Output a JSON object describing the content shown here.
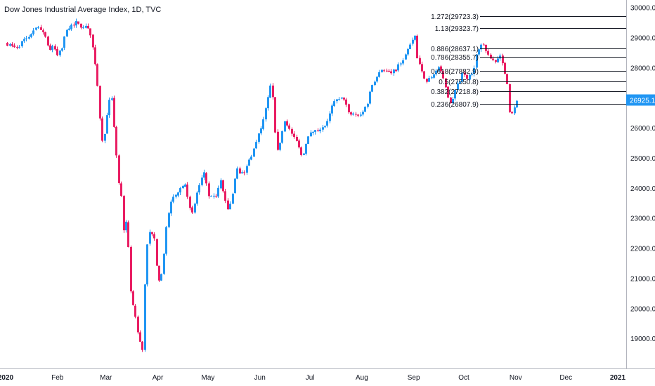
{
  "chart_title": "Dow Jones Industrial Average Index, 1D, TVC",
  "colors": {
    "up": "#2196f3",
    "down": "#e91e63",
    "fib_line": "#131722",
    "price_tag_bg": "#2196f3",
    "price_tag_text": "#ffffff",
    "axis_text": "#131722",
    "axis_line": "#b2b5be"
  },
  "chart_data": {
    "type": "candlestick",
    "title": "Dow Jones Industrial Average Index, 1D, TVC",
    "x_axis": {
      "labels": [
        "2020",
        "Feb",
        "Mar",
        "Apr",
        "May",
        "Jun",
        "Jul",
        "Aug",
        "Sep",
        "Oct",
        "Nov",
        "Dec",
        "2021"
      ]
    },
    "y_axis": {
      "side": "right",
      "range": [
        18000,
        30250
      ],
      "ticks": [
        "19000.0",
        "20000.0",
        "21000.0",
        "22000.0",
        "23000.0",
        "24000.0",
        "25000.0",
        "26000.0",
        "27000.0",
        "28000.0",
        "29000.0",
        "30000.0"
      ]
    },
    "last_price": {
      "value": 26925.1,
      "label": "26925.1"
    },
    "fib_levels": [
      {
        "label": "1.272(29723.3)",
        "price": 29723.3
      },
      {
        "label": "1.13(29323.7)",
        "price": 29323.7
      },
      {
        "label": "0.886(28637.1)",
        "price": 28637.1
      },
      {
        "label": "0.786(28355.7)",
        "price": 28355.7
      },
      {
        "label": "0.618(27882.9)",
        "price": 27882.9
      },
      {
        "label": "0.5(27550.8)",
        "price": 27550.8
      },
      {
        "label": "0.382(27218.8)",
        "price": 27218.8
      },
      {
        "label": "0.236(26807.9)",
        "price": 26807.9
      }
    ],
    "series_path": [
      [
        "2020-01-02",
        28800
      ],
      [
        "2020-01-06",
        28650
      ],
      [
        "2020-01-08",
        28700
      ],
      [
        "2020-01-10",
        28800
      ],
      [
        "2020-01-15",
        29050
      ],
      [
        "2020-01-17",
        29250
      ],
      [
        "2020-01-21",
        29350
      ],
      [
        "2020-01-24",
        29150
      ],
      [
        "2020-01-27",
        28600
      ],
      [
        "2020-01-30",
        28700
      ],
      [
        "2020-01-31",
        28350
      ],
      [
        "2020-02-04",
        28700
      ],
      [
        "2020-02-06",
        29300
      ],
      [
        "2020-02-12",
        29500
      ],
      [
        "2020-02-14",
        29400
      ],
      [
        "2020-02-19",
        29350
      ],
      [
        "2020-02-21",
        29000
      ],
      [
        "2020-02-24",
        27950
      ],
      [
        "2020-02-27",
        25800
      ],
      [
        "2020-02-28",
        25400
      ],
      [
        "2020-03-02",
        26700
      ],
      [
        "2020-03-04",
        27100
      ],
      [
        "2020-03-06",
        25900
      ],
      [
        "2020-03-09",
        23850
      ],
      [
        "2020-03-11",
        23550
      ],
      [
        "2020-03-12",
        21200
      ],
      [
        "2020-03-13",
        23200
      ],
      [
        "2020-03-16",
        20200
      ],
      [
        "2020-03-18",
        19900
      ],
      [
        "2020-03-20",
        19150
      ],
      [
        "2020-03-23",
        18590
      ],
      [
        "2020-03-24",
        20700
      ],
      [
        "2020-03-26",
        22550
      ],
      [
        "2020-03-30",
        22300
      ],
      [
        "2020-04-01",
        20950
      ],
      [
        "2020-04-03",
        21050
      ],
      [
        "2020-04-06",
        22700
      ],
      [
        "2020-04-09",
        23700
      ],
      [
        "2020-04-14",
        23950
      ],
      [
        "2020-04-17",
        24250
      ],
      [
        "2020-04-21",
        23000
      ],
      [
        "2020-04-24",
        23800
      ],
      [
        "2020-04-29",
        24600
      ],
      [
        "2020-05-01",
        23700
      ],
      [
        "2020-05-06",
        23700
      ],
      [
        "2020-05-08",
        24300
      ],
      [
        "2020-05-13",
        23250
      ],
      [
        "2020-05-15",
        23700
      ],
      [
        "2020-05-18",
        24600
      ],
      [
        "2020-05-22",
        24450
      ],
      [
        "2020-05-26",
        24990
      ],
      [
        "2020-05-29",
        25400
      ],
      [
        "2020-06-03",
        26250
      ],
      [
        "2020-06-08",
        27570
      ],
      [
        "2020-06-11",
        25100
      ],
      [
        "2020-06-16",
        26300
      ],
      [
        "2020-06-19",
        25850
      ],
      [
        "2020-06-24",
        25450
      ],
      [
        "2020-06-26",
        25000
      ],
      [
        "2020-06-30",
        25800
      ],
      [
        "2020-07-02",
        25800
      ],
      [
        "2020-07-08",
        26050
      ],
      [
        "2020-07-10",
        26080
      ],
      [
        "2020-07-15",
        26850
      ],
      [
        "2020-07-21",
        27000
      ],
      [
        "2020-07-24",
        26450
      ],
      [
        "2020-07-31",
        26430
      ],
      [
        "2020-08-04",
        26800
      ],
      [
        "2020-08-07",
        27430
      ],
      [
        "2020-08-12",
        27980
      ],
      [
        "2020-08-18",
        27780
      ],
      [
        "2020-08-21",
        27930
      ],
      [
        "2020-08-26",
        28330
      ],
      [
        "2020-09-02",
        29100
      ],
      [
        "2020-09-03",
        28290
      ],
      [
        "2020-09-08",
        27500
      ],
      [
        "2020-09-11",
        27670
      ],
      [
        "2020-09-16",
        28030
      ],
      [
        "2020-09-21",
        27150
      ],
      [
        "2020-09-23",
        26760
      ],
      [
        "2020-09-25",
        27170
      ],
      [
        "2020-09-30",
        27780
      ],
      [
        "2020-10-02",
        27680
      ],
      [
        "2020-10-06",
        27770
      ],
      [
        "2020-10-09",
        28590
      ],
      [
        "2020-10-12",
        28840
      ],
      [
        "2020-10-15",
        28490
      ],
      [
        "2020-10-19",
        28200
      ],
      [
        "2020-10-22",
        28360
      ],
      [
        "2020-10-23",
        28330
      ],
      [
        "2020-10-26",
        27690
      ],
      [
        "2020-10-27",
        27460
      ],
      [
        "2020-10-28",
        26520
      ],
      [
        "2020-10-30",
        26500
      ],
      [
        "2020-11-02",
        26925
      ]
    ]
  }
}
